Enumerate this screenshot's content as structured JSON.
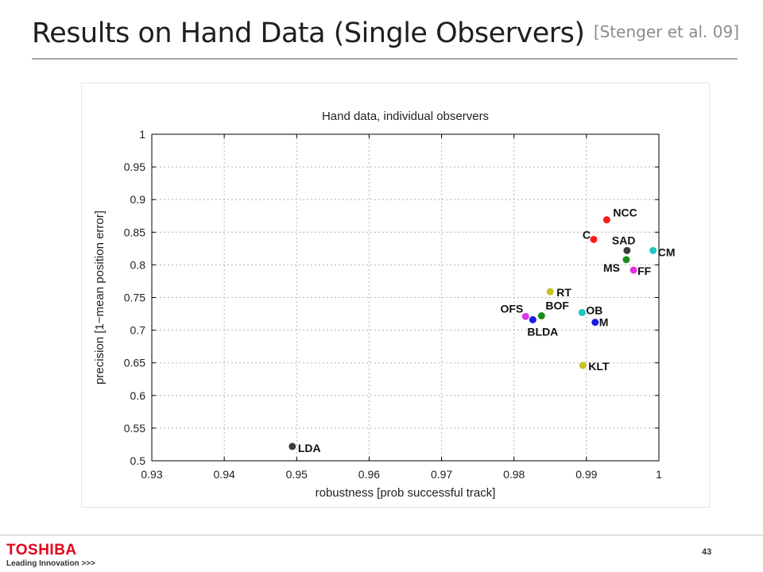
{
  "slide": {
    "title": "Results on Hand Data (Single Observers)",
    "citation": "[Stenger et al. 09]",
    "page_number": "43"
  },
  "branding": {
    "name": "TOSHIBA",
    "tagline": "Leading Innovation >>>"
  },
  "colors": {
    "title": "#1f1f1f",
    "citation": "#8c8c8c",
    "brand": "#e2001a",
    "grid": "#b4b4b4"
  },
  "chart_data": {
    "type": "scatter",
    "title": "Hand data, individual observers",
    "xlabel": "robustness [prob successful track]",
    "ylabel": "precision [1−mean position error]",
    "xlim": [
      0.93,
      1
    ],
    "ylim": [
      0.5,
      1
    ],
    "xticks": [
      "0.93",
      "0.94",
      "0.95",
      "0.96",
      "0.97",
      "0.98",
      "0.99",
      "1"
    ],
    "yticks": [
      "0.5",
      "0.55",
      "0.6",
      "0.65",
      "0.7",
      "0.75",
      "0.8",
      "0.85",
      "0.9",
      "0.95",
      "1"
    ],
    "grid": true,
    "points": [
      {
        "label": "NCC",
        "x": 0.9928,
        "y": 0.869,
        "color": "#ff1a1a"
      },
      {
        "label": "C",
        "x": 0.991,
        "y": 0.839,
        "color": "#ff1a1a"
      },
      {
        "label": "SAD",
        "x": 0.9956,
        "y": 0.822,
        "color": "#3c3c3c"
      },
      {
        "label": "CM",
        "x": 0.9992,
        "y": 0.822,
        "color": "#1fc4c4"
      },
      {
        "label": "MS",
        "x": 0.9955,
        "y": 0.808,
        "color": "#1a8c1a"
      },
      {
        "label": "FF",
        "x": 0.9965,
        "y": 0.792,
        "color": "#e033e0"
      },
      {
        "label": "RT",
        "x": 0.985,
        "y": 0.759,
        "color": "#c8c31e"
      },
      {
        "label": "OB",
        "x": 0.9894,
        "y": 0.727,
        "color": "#1fc4c4"
      },
      {
        "label": "BOF",
        "x": 0.9838,
        "y": 0.722,
        "color": "#1a8c1a"
      },
      {
        "label": "OFS",
        "x": 0.9816,
        "y": 0.721,
        "color": "#e033e0"
      },
      {
        "label": "BLDA",
        "x": 0.9826,
        "y": 0.716,
        "color": "#1a1ae6"
      },
      {
        "label": "M",
        "x": 0.9912,
        "y": 0.712,
        "color": "#1a1ae6"
      },
      {
        "label": "KLT",
        "x": 0.9895,
        "y": 0.646,
        "color": "#c8c31e"
      },
      {
        "label": "LDA",
        "x": 0.9494,
        "y": 0.522,
        "color": "#3c3c3c"
      }
    ]
  }
}
